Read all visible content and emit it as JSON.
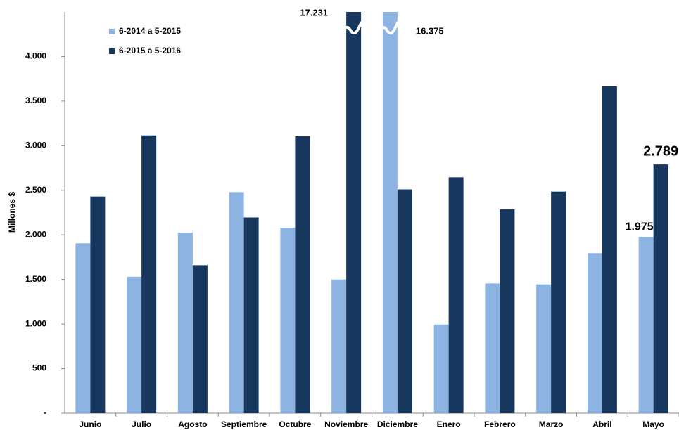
{
  "chart_data": {
    "type": "bar",
    "ylabel": "Millones $",
    "categories": [
      "Junio",
      "Julio",
      "Agosto",
      "Septiembre",
      "Octubre",
      "Noviembre",
      "Diciembre",
      "Enero",
      "Febrero",
      "Marzo",
      "Abril",
      "Mayo"
    ],
    "series": [
      {
        "name": "6-2014 a 5-2015",
        "color": "#8db3e2",
        "values": [
          1905,
          1530,
          2025,
          2480,
          2080,
          1500,
          16375,
          995,
          1455,
          1445,
          1795,
          1975
        ],
        "value_labels": [
          null,
          null,
          null,
          null,
          null,
          null,
          "16.375",
          null,
          null,
          null,
          null,
          "1.975"
        ]
      },
      {
        "name": "6-2015 a 5-2016",
        "color": "#17375e",
        "values": [
          2430,
          3115,
          1660,
          2195,
          3105,
          17231,
          2510,
          2645,
          2285,
          2485,
          3665,
          2789
        ],
        "value_labels": [
          null,
          null,
          null,
          null,
          null,
          "17.231",
          null,
          null,
          null,
          null,
          null,
          "2.789"
        ]
      }
    ],
    "ylim": [
      0,
      4500
    ],
    "yticks": [
      {
        "value": 0,
        "label": "-"
      },
      500,
      {
        "value": 1000,
        "label": "1.000"
      },
      {
        "value": 1500,
        "label": "1.500"
      },
      {
        "value": 2000,
        "label": "2.000"
      },
      {
        "value": 2500,
        "label": "2.500"
      },
      {
        "value": 3000,
        "label": "3.000"
      },
      {
        "value": 3500,
        "label": "3.500"
      },
      {
        "value": 4000,
        "label": "4.000"
      }
    ],
    "legend": "top-left",
    "grid": false
  }
}
